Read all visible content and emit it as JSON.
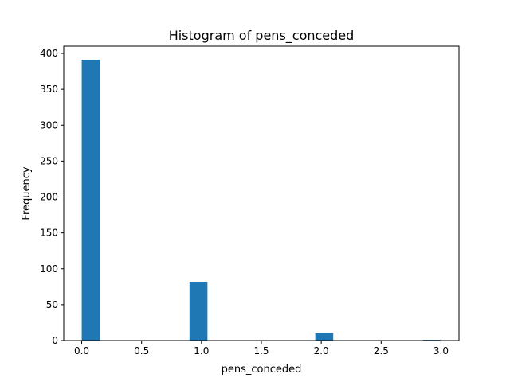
{
  "chart_data": {
    "type": "bar",
    "title": "Histogram of pens_conceded",
    "xlabel": "pens_conceded",
    "ylabel": "Frequency",
    "xlim": [
      -0.15,
      3.15
    ],
    "ylim": [
      0,
      410
    ],
    "xticks": [
      0.0,
      0.5,
      1.0,
      1.5,
      2.0,
      2.5,
      3.0
    ],
    "xtick_labels": [
      "0.0",
      "0.5",
      "1.0",
      "1.5",
      "2.0",
      "2.5",
      "3.0"
    ],
    "yticks": [
      0,
      50,
      100,
      150,
      200,
      250,
      300,
      350,
      400
    ],
    "ytick_labels": [
      "0",
      "50",
      "100",
      "150",
      "200",
      "250",
      "300",
      "350",
      "400"
    ],
    "bins": [
      {
        "x0": 0.0,
        "x1": 0.15,
        "count": 391
      },
      {
        "x0": 0.9,
        "x1": 1.05,
        "count": 82
      },
      {
        "x0": 1.95,
        "x1": 2.1,
        "count": 10
      },
      {
        "x0": 2.85,
        "x1": 3.0,
        "count": 1
      }
    ],
    "bar_color": "#1f77b4",
    "grid": false,
    "legend": false
  }
}
